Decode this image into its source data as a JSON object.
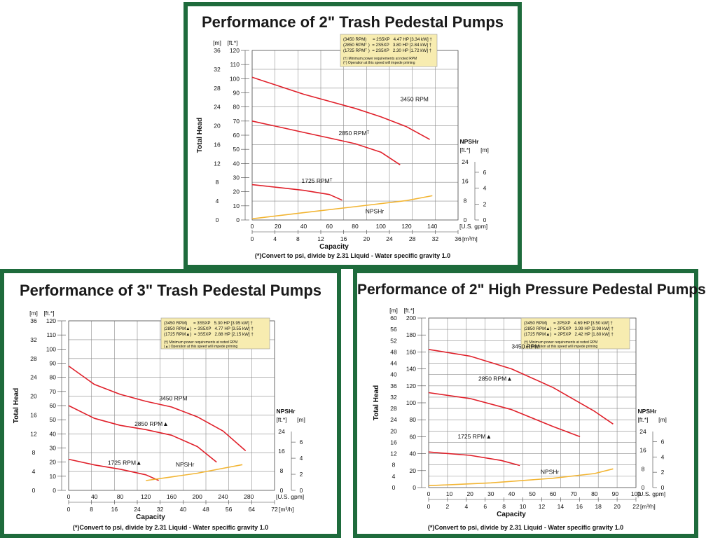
{
  "colors": {
    "frame": "#1e6b3c",
    "curve": "#e0202a",
    "npsh": "#f2b534",
    "legend_bg": "#f7ecb0",
    "grid": "#8c8c8c"
  },
  "chart_data": [
    {
      "type": "line",
      "title": "Performance of 2\" Trash Pedestal Pumps",
      "y_head_m_label": "[m]",
      "y_head_ft_label": "[ft.*]",
      "ylabel": "Total Head",
      "y_m_ticks": [
        "0",
        "4",
        "8",
        "12",
        "16",
        "20",
        "24",
        "28",
        "32",
        "36"
      ],
      "y_ft_ticks": [
        "0",
        "10",
        "20",
        "30",
        "40",
        "50",
        "60",
        "70",
        "80",
        "90",
        "100",
        "110",
        "120"
      ],
      "ylim_ft": [
        0,
        120
      ],
      "x_gpm_ticks": [
        "0",
        "20",
        "40",
        "60",
        "80",
        "100",
        "120",
        "140"
      ],
      "x_gpm_unit": "[U.S. gpm]",
      "x_m3h_ticks": [
        "0",
        "4",
        "8",
        "12",
        "16",
        "20",
        "24",
        "28",
        "32",
        "36"
      ],
      "x_m3h_unit": "[m³/h]",
      "xlim_gpm": [
        0,
        160
      ],
      "xlabel": "Capacity",
      "npsh_title": "NPSHr",
      "npsh_ft_label": "[ft.*]",
      "npsh_m_label": "[m]",
      "npsh_ft_ticks": [
        "0",
        "8",
        "16",
        "24"
      ],
      "npsh_m_ticks": [
        "0",
        "2",
        "4",
        "6"
      ],
      "npsh_ft_max": 24,
      "legend_lines": [
        "(3450 RPM)     = 2S5XP   4.47 HP [3.34 kW] †",
        "(2850 RPMᵀ )  = 2S5XP   3.80 HP [2.84 kW] †",
        "(1725 RPMᵀ )  = 2S5XP   2.30 HP [1.72 kW] †"
      ],
      "legend_notes": [
        "(†) Minimum power requirements at noted RPM",
        "(ᵀ) Operation at this speed will impede priming"
      ],
      "series": [
        {
          "name": "3450 RPM",
          "label": "3450 RPM",
          "x": [
            0,
            20,
            40,
            60,
            80,
            100,
            120,
            138
          ],
          "y": [
            101,
            95,
            89,
            84,
            79,
            73,
            66,
            57
          ]
        },
        {
          "name": "2850 RPM",
          "label": "2850 RPMᵀ",
          "x": [
            0,
            20,
            40,
            60,
            80,
            100,
            115
          ],
          "y": [
            70,
            66,
            62,
            58,
            54,
            48,
            39
          ]
        },
        {
          "name": "1725 RPM",
          "label": "1725 RPMᵀ",
          "x": [
            0,
            20,
            40,
            60,
            70
          ],
          "y": [
            25,
            23,
            21,
            18,
            14
          ]
        }
      ],
      "npsh": {
        "name": "NPSHr",
        "label": "NPSHr",
        "x": [
          0,
          40,
          80,
          120,
          140
        ],
        "y": [
          0.5,
          3,
          5.5,
          8,
          10
        ]
      },
      "footer": "(*)Convert to psi, divide by 2.31     Liquid - Water specific gravity 1.0"
    },
    {
      "type": "line",
      "title": "Performance of 3\" Trash Pedestal Pumps",
      "y_head_m_label": "[m]",
      "y_head_ft_label": "[ft.*]",
      "ylabel": "Total Head",
      "y_m_ticks": [
        "0",
        "4",
        "8",
        "12",
        "16",
        "20",
        "24",
        "28",
        "32",
        "36"
      ],
      "y_ft_ticks": [
        "0",
        "10",
        "20",
        "30",
        "40",
        "50",
        "60",
        "70",
        "80",
        "90",
        "100",
        "110",
        "120"
      ],
      "ylim_ft": [
        0,
        120
      ],
      "x_gpm_ticks": [
        "0",
        "40",
        "80",
        "120",
        "160",
        "200",
        "240",
        "280"
      ],
      "x_gpm_unit": "[U.S. gpm]",
      "x_m3h_ticks": [
        "0",
        "8",
        "16",
        "24",
        "32",
        "40",
        "48",
        "56",
        "64",
        "72"
      ],
      "x_m3h_unit": "[m³/h]",
      "xlim_gpm": [
        0,
        320
      ],
      "xlabel": "Capacity",
      "npsh_title": "NPSHr",
      "npsh_ft_label": "[ft.*]",
      "npsh_m_label": "[m]",
      "npsh_ft_ticks": [
        "0",
        "8",
        "16",
        "24"
      ],
      "npsh_m_ticks": [
        "0",
        "2",
        "4",
        "6"
      ],
      "npsh_ft_max": 24,
      "legend_lines": [
        "(3450 RPM)     = 3S5XP   5.30 HP [3.95 kW] †",
        "(2850 RPM▲)  = 3S5XP   4.77 HP [3.55 kW] †",
        "(1725 RPM▲)  = 3S5XP   2.88 HP [2.15 kW] †"
      ],
      "legend_notes": [
        "(†) Minimum power requirements at noted RPM",
        "(▲) Operation at this speed will impede priming"
      ],
      "series": [
        {
          "name": "3450 RPM",
          "label": "3450 RPM",
          "x": [
            0,
            40,
            80,
            120,
            160,
            200,
            240,
            275
          ],
          "y": [
            88,
            75,
            68,
            63,
            59,
            52,
            42,
            28
          ]
        },
        {
          "name": "2850 RPM",
          "label": "2850 RPM▲",
          "x": [
            0,
            40,
            80,
            120,
            160,
            200,
            230
          ],
          "y": [
            60,
            51,
            46,
            43,
            39,
            31,
            20
          ]
        },
        {
          "name": "1725 RPM",
          "label": "1725 RPM▲",
          "x": [
            0,
            40,
            80,
            120,
            140
          ],
          "y": [
            22,
            18,
            15,
            11,
            7
          ]
        }
      ],
      "npsh": {
        "name": "NPSHr",
        "label": "NPSHr",
        "x": [
          120,
          160,
          200,
          240,
          270
        ],
        "y": [
          4,
          5.5,
          7,
          9,
          10.5
        ]
      },
      "footer": "(*)Convert to psi, divide by 2.31     Liquid - Water specific gravity 1.0"
    },
    {
      "type": "line",
      "title": "Performance of 2\" High Pressure Pedestal Pumps",
      "y_head_m_label": "[m]",
      "y_head_ft_label": "[ft.*]",
      "ylabel": "Total Head",
      "y_m_ticks": [
        "0",
        "4",
        "8",
        "12",
        "16",
        "20",
        "24",
        "28",
        "32",
        "36",
        "40",
        "44",
        "48",
        "52",
        "56",
        "60"
      ],
      "y_ft_ticks": [
        "0",
        "20",
        "40",
        "60",
        "80",
        "100",
        "120",
        "140",
        "160",
        "180",
        "200"
      ],
      "ylim_ft": [
        0,
        200
      ],
      "x_gpm_ticks": [
        "0",
        "10",
        "20",
        "30",
        "40",
        "50",
        "60",
        "70",
        "80",
        "90",
        "100"
      ],
      "x_gpm_unit": "[U.S. gpm]",
      "x_m3h_ticks": [
        "0",
        "2",
        "4",
        "6",
        "8",
        "10",
        "12",
        "14",
        "16",
        "18",
        "20",
        "22"
      ],
      "x_m3h_unit": "[m³/h]",
      "xlim_gpm": [
        0,
        100
      ],
      "xlabel": "Capacity",
      "npsh_title": "NPSHr",
      "npsh_ft_label": "[ft.*]",
      "npsh_m_label": "[m]",
      "npsh_ft_ticks": [
        "0",
        "8",
        "16",
        "24"
      ],
      "npsh_m_ticks": [
        "0",
        "2",
        "4",
        "6"
      ],
      "npsh_ft_max": 24,
      "legend_lines": [
        "(3450 RPM)     = 2P5XP   4.69 HP [3.50 kW] †",
        "(2850 RPM▲)  = 2P5XP   3.99 HP [2.98 kW] †",
        "(1725 RPM▲)  = 2P5XP   2.42 HP [1.80 kW] †"
      ],
      "legend_notes": [
        "(†) Minimum power requirements at noted RPM",
        "(▲) Operation at this speed will impede priming"
      ],
      "series": [
        {
          "name": "3450 RPM",
          "label": "3450 RPM",
          "x": [
            0,
            20,
            40,
            60,
            80,
            89
          ],
          "y": [
            163,
            155,
            140,
            118,
            90,
            75
          ]
        },
        {
          "name": "2850 RPM",
          "label": "2850 RPM▲",
          "x": [
            0,
            20,
            40,
            60,
            73
          ],
          "y": [
            112,
            105,
            92,
            72,
            60
          ]
        },
        {
          "name": "1725 RPM",
          "label": "1725 RPM▲",
          "x": [
            0,
            20,
            35,
            44
          ],
          "y": [
            42,
            38,
            32,
            26
          ]
        }
      ],
      "npsh": {
        "name": "NPSHr",
        "label": "NPSHr",
        "x": [
          0,
          30,
          60,
          80,
          89
        ],
        "y": [
          0.8,
          2,
          4,
          6,
          8
        ]
      },
      "footer": "(*)Convert to psi, divide by 2.31     Liquid - Water specific gravity 1.0"
    }
  ]
}
